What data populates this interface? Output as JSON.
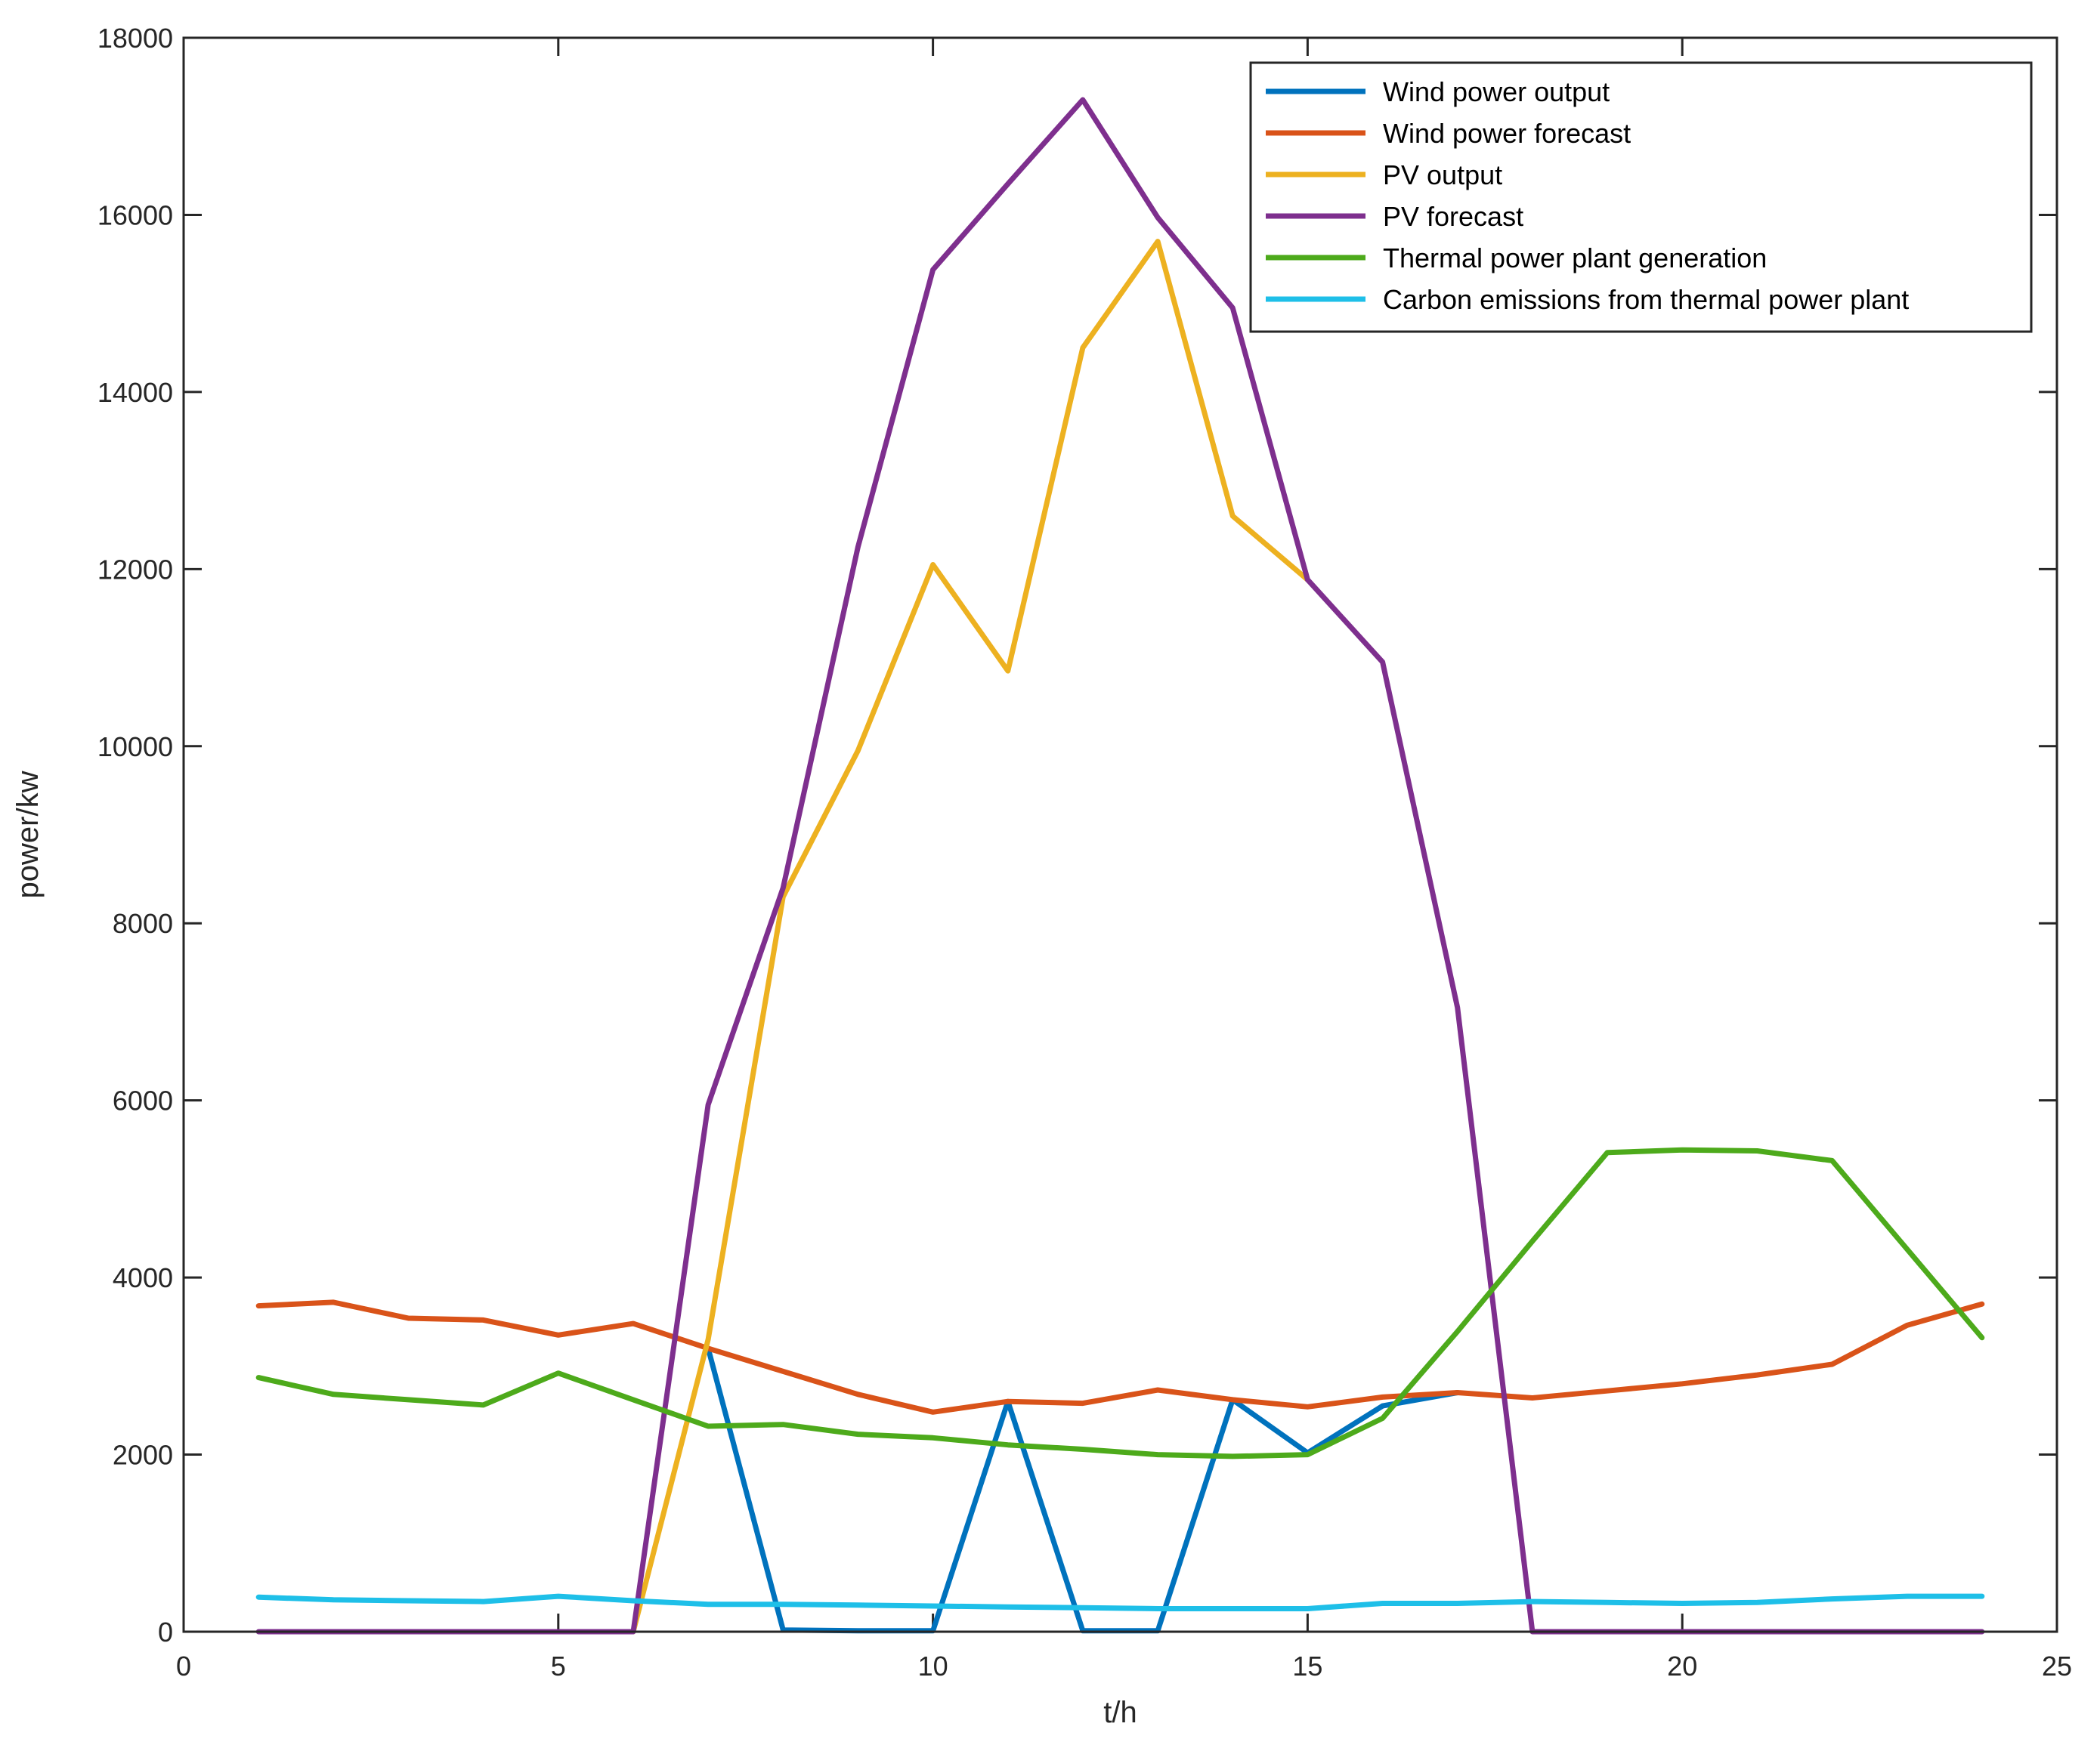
{
  "chart_data": {
    "type": "line",
    "title": "",
    "xlabel": "t/h",
    "ylabel": "power/kw",
    "xlim": [
      0,
      25
    ],
    "ylim": [
      0,
      18000
    ],
    "xticks": [
      0,
      5,
      10,
      15,
      20,
      25
    ],
    "yticks": [
      0,
      2000,
      4000,
      6000,
      8000,
      10000,
      12000,
      14000,
      16000,
      18000
    ],
    "grid": false,
    "legend_position": "top-right",
    "x": [
      1,
      2,
      3,
      4,
      5,
      6,
      7,
      8,
      9,
      10,
      11,
      12,
      13,
      14,
      15,
      16,
      17,
      18,
      19,
      20,
      21,
      22,
      23,
      24
    ],
    "series": [
      {
        "name": "Wind power output",
        "color": "#0072BD",
        "x": [
          7,
          8,
          9,
          10,
          11,
          12,
          13,
          14,
          15,
          16,
          17
        ],
        "values": [
          3200,
          20,
          10,
          10,
          2600,
          10,
          10,
          2620,
          2020,
          2550,
          2700
        ]
      },
      {
        "name": "Wind power forecast",
        "color": "#D95319",
        "values": [
          3680,
          3720,
          3540,
          3520,
          3350,
          3480,
          3200,
          2940,
          2680,
          2480,
          2600,
          2580,
          2730,
          2620,
          2540,
          2650,
          2700,
          2640,
          2720,
          2800,
          2900,
          3020,
          3460,
          3700
        ]
      },
      {
        "name": "PV output",
        "color": "#EDB120",
        "x": [
          6,
          7,
          8,
          9,
          10,
          11,
          12,
          13,
          14,
          15
        ],
        "values": [
          0,
          3300,
          8300,
          9950,
          12050,
          10850,
          14500,
          15700,
          12600,
          11880
        ]
      },
      {
        "name": "PV forecast",
        "color": "#7E2F8E",
        "values": [
          0,
          0,
          0,
          0,
          0,
          0,
          5950,
          8400,
          12250,
          15380,
          16350,
          17300,
          15970,
          14950,
          11880,
          10950,
          7050,
          0,
          0,
          0,
          0,
          0,
          0,
          0
        ]
      },
      {
        "name": "Thermal power plant generation",
        "color": "#4DAA1B",
        "values": [
          2870,
          2680,
          2620,
          2560,
          2920,
          2620,
          2320,
          2340,
          2230,
          2190,
          2110,
          2060,
          2000,
          1980,
          2000,
          2410,
          3390,
          4410,
          5410,
          5440,
          5430,
          5320,
          4320,
          3320
        ]
      },
      {
        "name": "Carbon emissions from thermal power plant",
        "color": "#1EBFE8",
        "values": [
          390,
          360,
          350,
          340,
          400,
          350,
          310,
          310,
          300,
          290,
          280,
          270,
          260,
          260,
          260,
          320,
          320,
          340,
          330,
          320,
          330,
          370,
          400,
          400
        ]
      }
    ]
  }
}
